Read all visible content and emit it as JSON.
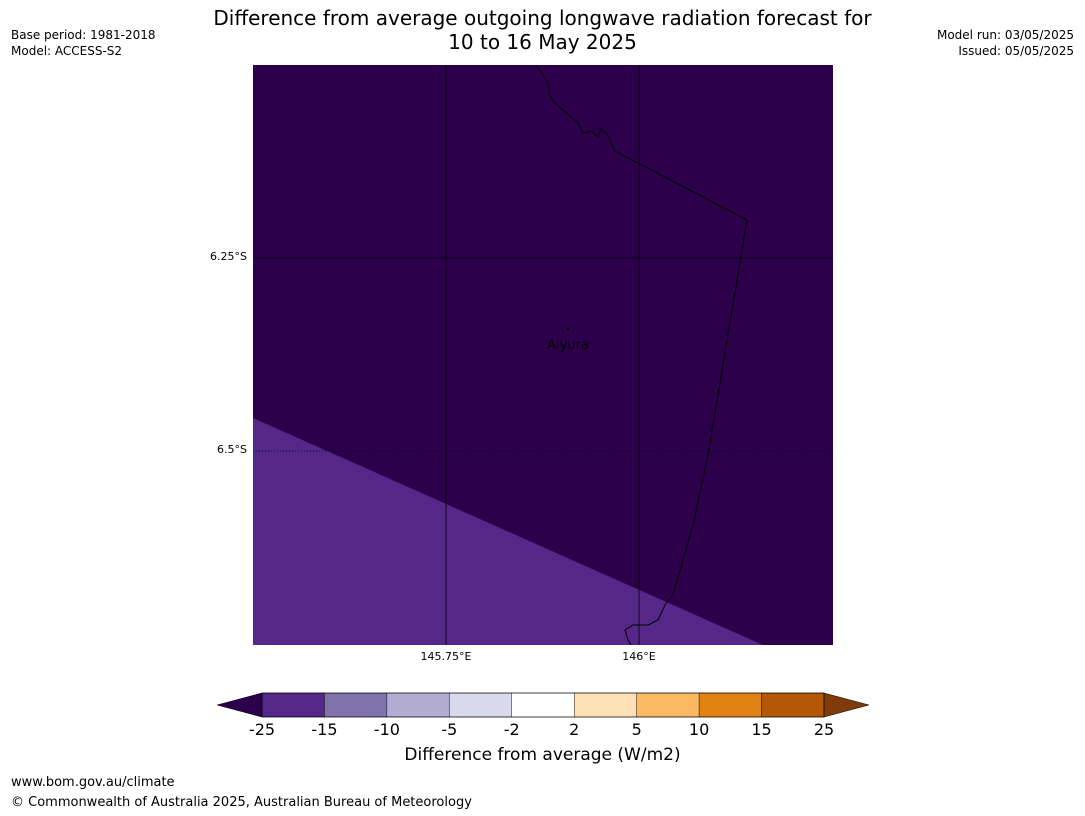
{
  "title": {
    "line1": "Difference from average outgoing longwave radiation forecast for",
    "line2": "10 to 16 May 2025"
  },
  "meta": {
    "base_period": "Base period: 1981-2018",
    "model": "Model: ACCESS-S2",
    "model_run": "Model run: 03/05/2025",
    "issued": "Issued: 05/05/2025"
  },
  "map": {
    "lat_labels": [
      "6.25°S",
      "6.5°S"
    ],
    "lon_labels": [
      "145.75°E",
      "146°E"
    ],
    "place": "Aiyura",
    "fill_main": "#2d004b",
    "fill_band": "#542788"
  },
  "colorbar": {
    "ticks": [
      "-25",
      "-15",
      "-10",
      "-5",
      "-2",
      "2",
      "5",
      "10",
      "15",
      "25"
    ],
    "colors": [
      "#542788",
      "#8073ac",
      "#b2abd2",
      "#d8daeb",
      "#ffffff",
      "#fee0b6",
      "#fdb863",
      "#e08214",
      "#b35806"
    ],
    "under_color": "#2d004b",
    "over_color": "#7f3b08",
    "label": "Difference from average (W/m2)"
  },
  "footer": {
    "url": "www.bom.gov.au/climate",
    "copyright": "© Commonwealth of Australia 2025, Australian Bureau of Meteorology"
  }
}
